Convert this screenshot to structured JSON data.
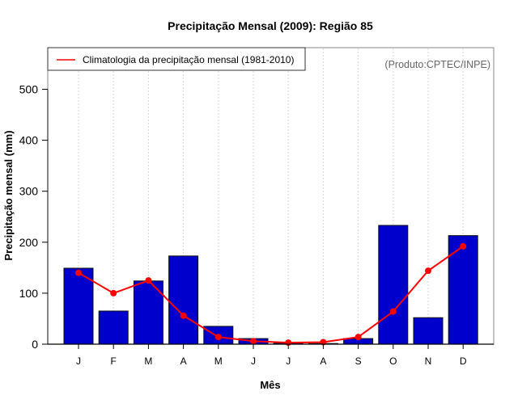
{
  "chart_data": {
    "type": "bar",
    "title": "Precipitação Mensal (2009): Região 85",
    "xlabel": "Mês",
    "ylabel": "Precipitação mensal (mm)",
    "categories": [
      "J",
      "F",
      "M",
      "A",
      "M",
      "J",
      "J",
      "A",
      "S",
      "O",
      "N",
      "D"
    ],
    "ylim": [
      0,
      580
    ],
    "yticks": [
      0,
      100,
      200,
      300,
      400,
      500
    ],
    "grid": "vertical-dotted",
    "series": [
      {
        "name": "Precipitação mensal 2009",
        "kind": "bar",
        "color": "#0000CC",
        "values": [
          149,
          65,
          124,
          173,
          35,
          11,
          2,
          1,
          11,
          233,
          52,
          213
        ]
      },
      {
        "name": "Climatologia da precipitação mensal (1981-2010)",
        "kind": "line",
        "color": "#FF0000",
        "values": [
          140,
          100,
          125,
          56,
          14,
          6,
          3,
          4,
          14,
          64,
          144,
          192
        ]
      }
    ],
    "legend": {
      "placement": "top-left",
      "entries": [
        "Climatologia da precipitação mensal (1981-2010)"
      ]
    },
    "annotation": "(Produto:CPTEC/INPE)"
  }
}
